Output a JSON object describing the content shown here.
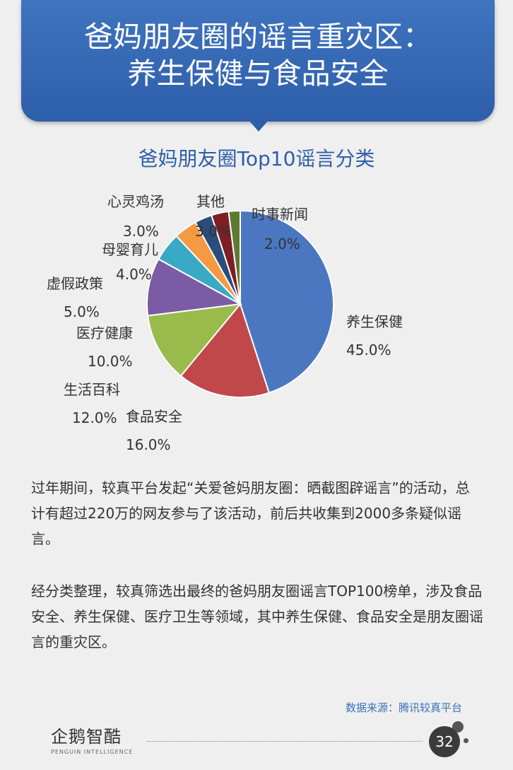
{
  "header": {
    "title_line1": "爸妈朋友圈的谣言重灾区：",
    "title_line2": "养生保健与食品安全"
  },
  "chart_data": {
    "type": "pie",
    "title": "爸妈朋友圈Top10谣言分类",
    "categories": [
      "养生保健",
      "食品安全",
      "生活百科",
      "医疗健康",
      "虚假政策",
      "母婴育儿",
      "心灵鸡汤",
      "其他",
      "时事新闻"
    ],
    "values": [
      45.0,
      16.0,
      12.0,
      10.0,
      5.0,
      4.0,
      3.0,
      3.0,
      2.0
    ],
    "labels": [
      "45.0%",
      "16.0%",
      "12.0%",
      "10.0%",
      "5.0%",
      "4.0%",
      "3.0%",
      "3.0%",
      "2.0%"
    ],
    "colors": [
      "#4a77c0",
      "#c0474a",
      "#98bb4c",
      "#7b5ba4",
      "#3aa9c6",
      "#f59a43",
      "#2a4d7c",
      "#7f1e24",
      "#5d7a2e"
    ]
  },
  "paragraphs": [
    "过年期间，较真平台发起“关爱爸妈朋友圈：晒截图辟谣言”的活动，总计有超过220万的网友参与了该活动，前后共收集到2000多条疑似谣言。",
    "经分类整理，较真筛选出最终的爸妈朋友圈谣言TOP100榜单，涉及食品安全、养生保健、医疗卫生等领域，其中养生保健、食品安全是朋友圈谣言的重灾区。"
  ],
  "source": "数据来源：腾讯较真平台",
  "footer": {
    "logo_text": "企鹅智酷",
    "logo_sub": "PENGUIN INTELLIGENCE",
    "page_number": "32"
  }
}
